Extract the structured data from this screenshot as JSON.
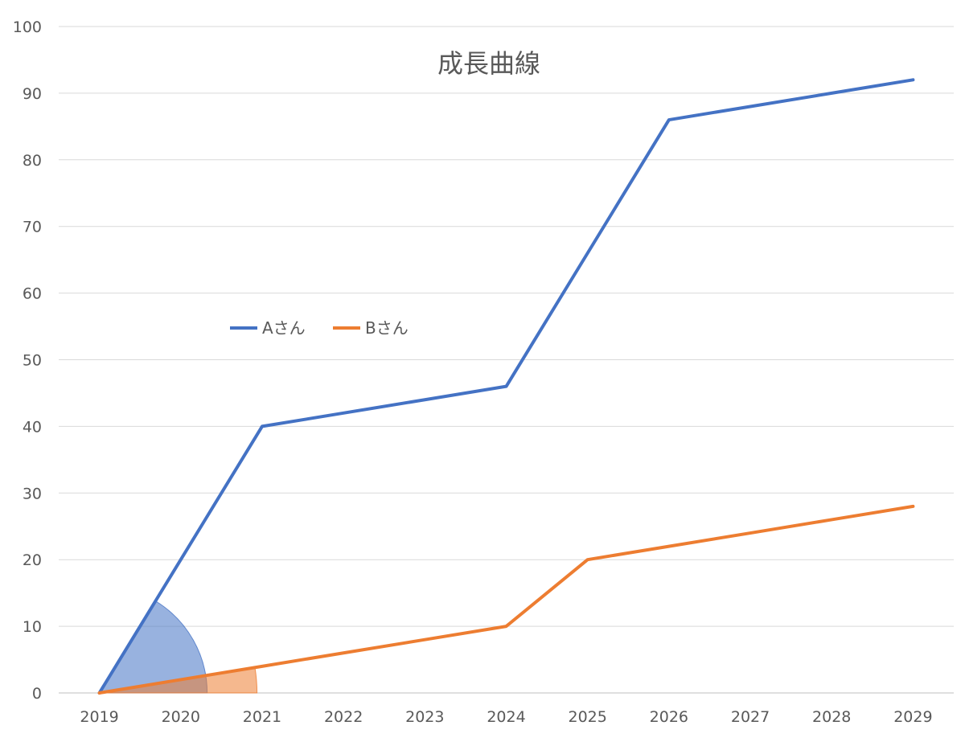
{
  "chart_data": {
    "type": "line",
    "title": "成長曲線",
    "xlabel": "",
    "ylabel": "",
    "categories": [
      "2019",
      "2020",
      "2021",
      "2022",
      "2023",
      "2024",
      "2025",
      "2026",
      "2027",
      "2028",
      "2029"
    ],
    "ylim": [
      0,
      100
    ],
    "yticks": [
      "0",
      "10",
      "20",
      "30",
      "40",
      "50",
      "60",
      "70",
      "80",
      "90",
      "100"
    ],
    "grid": true,
    "legend_position": "left-middle",
    "series": [
      {
        "name": "Aさん",
        "color": "#4472C4",
        "values": [
          0,
          20,
          40,
          42,
          44,
          46,
          66,
          86,
          88,
          90,
          92
        ]
      },
      {
        "name": "Bさん",
        "color": "#ED7D31",
        "values": [
          0,
          2,
          4,
          6,
          8,
          10,
          20,
          22,
          24,
          26,
          28
        ]
      }
    ],
    "angle_markers": [
      {
        "series": "Aさん",
        "color": "#4472C4"
      },
      {
        "series": "Bさん",
        "color": "#ED7D31"
      }
    ]
  }
}
